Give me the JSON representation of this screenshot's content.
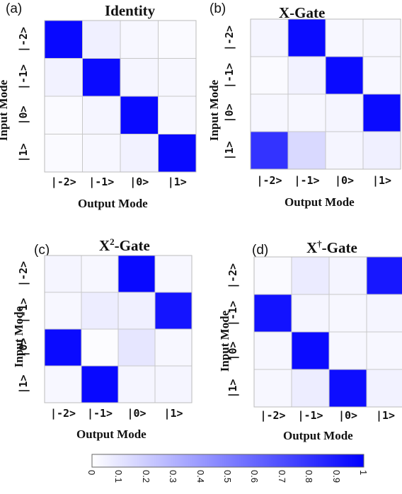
{
  "panels": [
    {
      "label": "(a)",
      "title": "Identity",
      "title_sup": "",
      "title_rest": "",
      "xlabel": "Output Mode",
      "ylabel": "Input Mode",
      "categories": [
        "|-2>",
        "|-1>",
        "|0>",
        "|1>"
      ]
    },
    {
      "label": "(b)",
      "title": "X-Gate",
      "title_sup": "",
      "title_rest": "",
      "xlabel": "Output Mode",
      "ylabel": "Input Mode",
      "categories": [
        "|-2>",
        "|-1>",
        "|0>",
        "|1>"
      ]
    },
    {
      "label": "(c)",
      "title": "X",
      "title_sup": "2",
      "title_rest": "-Gate",
      "xlabel": "Output Mode",
      "ylabel": "Input Mode",
      "categories": [
        "|-2>",
        "|-1>",
        "|0>",
        "|1>"
      ]
    },
    {
      "label": "(d)",
      "title": "X",
      "title_sup": "†",
      "title_rest": "-Gate",
      "xlabel": "Output Mode",
      "ylabel": "Input Mode",
      "categories": [
        "|-2>",
        "|-1>",
        "|0>",
        "|1>"
      ]
    }
  ],
  "colorbar": {
    "ticks": [
      "0",
      "0.1",
      "0.2",
      "0.3",
      "0.4",
      "0.5",
      "0.6",
      "0.7",
      "0.8",
      "0.9",
      "1"
    ],
    "min": 0,
    "max": 1,
    "color_low": "#ffffff",
    "color_high": "#0000ff"
  },
  "chart_data": [
    {
      "type": "heatmap",
      "title": "Identity",
      "xlabel": "Output Mode",
      "ylabel": "Input Mode",
      "x": [
        "|-2>",
        "|-1>",
        "|0>",
        "|1>"
      ],
      "y": [
        "|-2>",
        "|-1>",
        "|0>",
        "|1>"
      ],
      "values": [
        [
          0.97,
          0.06,
          0.03,
          0.02
        ],
        [
          0.05,
          0.96,
          0.04,
          0.03
        ],
        [
          0.02,
          0.04,
          0.97,
          0.03
        ],
        [
          0.02,
          0.03,
          0.05,
          0.97
        ]
      ],
      "range": [
        0,
        1
      ]
    },
    {
      "type": "heatmap",
      "title": "X-Gate",
      "xlabel": "Output Mode",
      "ylabel": "Input Mode",
      "x": [
        "|-2>",
        "|-1>",
        "|0>",
        "|1>"
      ],
      "y": [
        "|-2>",
        "|-1>",
        "|0>",
        "|1>"
      ],
      "values": [
        [
          0.04,
          0.96,
          0.03,
          0.03
        ],
        [
          0.02,
          0.05,
          0.96,
          0.03
        ],
        [
          0.03,
          0.03,
          0.04,
          0.96
        ],
        [
          0.8,
          0.15,
          0.04,
          0.06
        ]
      ],
      "range": [
        0,
        1
      ]
    },
    {
      "type": "heatmap",
      "title": "X2-Gate",
      "xlabel": "Output Mode",
      "ylabel": "Input Mode",
      "x": [
        "|-2>",
        "|-1>",
        "|0>",
        "|1>"
      ],
      "y": [
        "|-2>",
        "|-1>",
        "|0>",
        "|1>"
      ],
      "values": [
        [
          0.04,
          0.03,
          0.97,
          0.03
        ],
        [
          0.03,
          0.07,
          0.06,
          0.92
        ],
        [
          0.96,
          0.01,
          0.1,
          0.03
        ],
        [
          0.03,
          0.97,
          0.04,
          0.04
        ]
      ],
      "range": [
        0,
        1
      ]
    },
    {
      "type": "heatmap",
      "title": "X†-Gate",
      "xlabel": "Output Mode",
      "ylabel": "Input Mode",
      "x": [
        "|-2>",
        "|-1>",
        "|0>",
        "|1>"
      ],
      "y": [
        "|-2>",
        "|-1>",
        "|0>",
        "|1>"
      ],
      "values": [
        [
          0.02,
          0.08,
          0.04,
          0.91
        ],
        [
          0.93,
          0.04,
          0.03,
          0.04
        ],
        [
          0.03,
          0.96,
          0.03,
          0.03
        ],
        [
          0.03,
          0.07,
          0.95,
          0.05
        ]
      ],
      "range": [
        0,
        1
      ]
    }
  ]
}
